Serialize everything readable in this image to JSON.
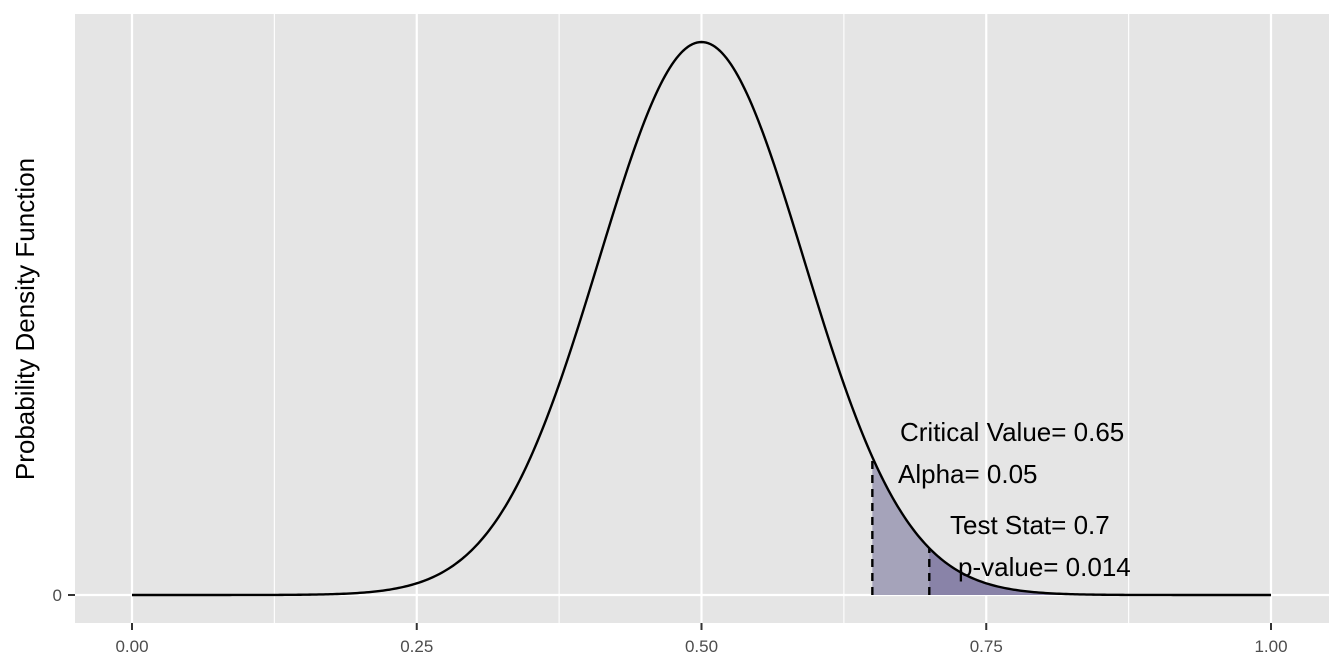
{
  "chart_data": {
    "type": "area",
    "title": "",
    "xlabel": "",
    "ylabel": "Probability Density Function",
    "xlim": [
      0,
      1
    ],
    "x_ticks": [
      0,
      0.25,
      0.5,
      0.75,
      1
    ],
    "x_tick_labels": [
      "0.00",
      "0.25",
      "0.50",
      "0.75",
      "1.00"
    ],
    "y_ticks": [
      0
    ],
    "y_tick_labels": [
      "0"
    ],
    "grid": true,
    "distribution": {
      "family": "normal",
      "mean": 0.5,
      "sd": 0.09
    },
    "critical_value": 0.65,
    "test_stat": 0.7,
    "annotations": {
      "critical_value": "Critical Value= 0.65",
      "alpha": "Alpha= 0.05",
      "test_stat": "Test Stat= 0.7",
      "p_value": "p-value= 0.014"
    },
    "colors": {
      "panel": "#e5e5e5",
      "grid": "#ffffff",
      "curve": "#000000",
      "alpha_fill": "#a5a3ba",
      "p_value_fill": "#8983a8"
    }
  }
}
